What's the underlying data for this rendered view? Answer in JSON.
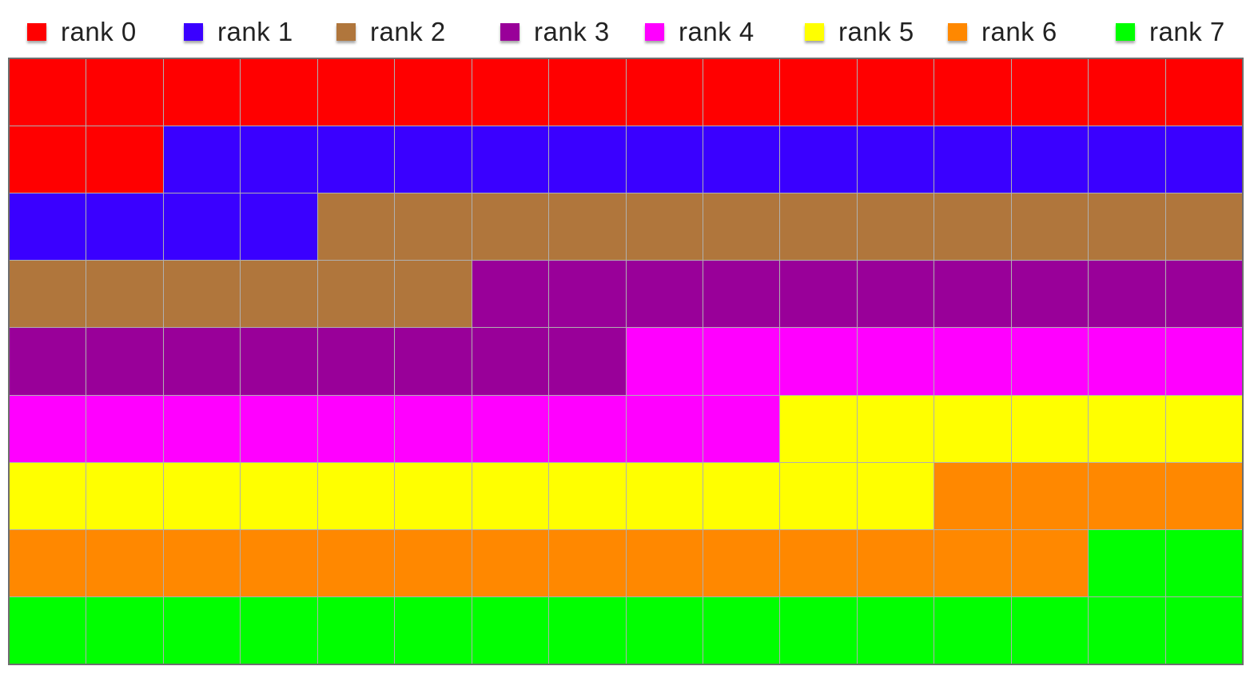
{
  "legend": {
    "items": [
      {
        "label": "rank 0",
        "color": "#ff0000"
      },
      {
        "label": "rank 1",
        "color": "#3a00ff"
      },
      {
        "label": "rank 2",
        "color": "#b0763c"
      },
      {
        "label": "rank 3",
        "color": "#990099"
      },
      {
        "label": "rank 4",
        "color": "#ff00ff"
      },
      {
        "label": "rank 5",
        "color": "#ffff00"
      },
      {
        "label": "rank 6",
        "color": "#ff8800"
      },
      {
        "label": "rank 7",
        "color": "#00ff00"
      }
    ]
  },
  "grid": {
    "columns": 16,
    "rows": 9,
    "cells_per_rank": 18,
    "rank_order": [
      0,
      1,
      2,
      3,
      4,
      5,
      6,
      7
    ]
  }
}
